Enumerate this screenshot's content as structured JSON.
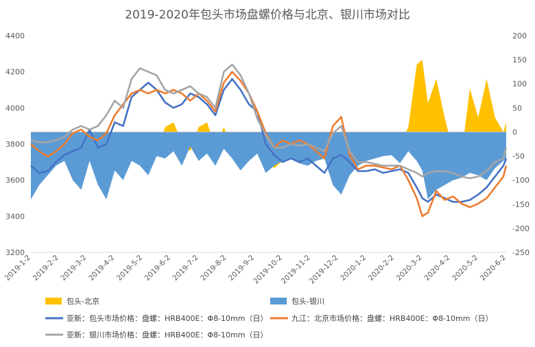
{
  "chart_data": {
    "type": "line",
    "title": "2019-2020年包头市场盘螺价格与北京、银川市场对比",
    "x_categories": [
      "2019-1-2",
      "2019-2-2",
      "2019-3-2",
      "2019-4-2",
      "2019-5-2",
      "2019-6-2",
      "2019-7-2",
      "2019-8-2",
      "2019-9-2",
      "2019-10-2",
      "2019-11-2",
      "2019-12-2",
      "2020-1-2",
      "2020-2-2",
      "2020-3-2",
      "2020-4-2",
      "2020-5-2",
      "2020-6-2"
    ],
    "y_left": {
      "min": 3200,
      "max": 4400,
      "ticks": [
        "3200",
        "3400",
        "3600",
        "3800",
        "4000",
        "4200",
        "4400"
      ]
    },
    "y_right": {
      "min": -250,
      "max": 200,
      "ticks": [
        "-250",
        "-200",
        "-150",
        "-100",
        "-50",
        "0",
        "50",
        "100",
        "150",
        "200"
      ]
    },
    "grid": false,
    "legend_position": "bottom",
    "series": [
      {
        "name": "包头-北京",
        "kind": "area",
        "axis": "right",
        "color": "#FFC000",
        "x": [
          0,
          0.3,
          0.6,
          0.9,
          1.2,
          1.5,
          1.8,
          2.1,
          2.4,
          2.7,
          3.0,
          3.3,
          3.6,
          3.9,
          4.2,
          4.5,
          4.8,
          5.1,
          5.4,
          5.7,
          6.0,
          6.3,
          6.6,
          6.9,
          7.2,
          7.5,
          7.8,
          8.1,
          8.4,
          8.7,
          9.0,
          9.3,
          9.6,
          9.9,
          10.2,
          10.5,
          10.8,
          11.1,
          11.4,
          11.7,
          12.0,
          12.3,
          12.6,
          12.9,
          13.2,
          13.5,
          13.8,
          14.0,
          14.2,
          14.5,
          14.8,
          15.1,
          15.4,
          15.7,
          16.0,
          16.3,
          16.6,
          16.9,
          17.0
        ],
        "values": [
          -20,
          -45,
          -40,
          -60,
          -15,
          -30,
          -10,
          -50,
          -20,
          -60,
          -30,
          -40,
          -50,
          -30,
          -20,
          -40,
          10,
          20,
          -20,
          -40,
          10,
          20,
          -30,
          10,
          -30,
          -50,
          -25,
          -10,
          -60,
          -75,
          -60,
          -50,
          -50,
          -60,
          -35,
          -55,
          -100,
          -130,
          -60,
          -55,
          -40,
          -35,
          -30,
          -28,
          -25,
          10,
          140,
          150,
          60,
          110,
          30,
          -40,
          -50,
          90,
          30,
          110,
          30,
          0,
          20
        ]
      },
      {
        "name": "包头-银川",
        "kind": "area",
        "axis": "right",
        "color": "#5B9BD5",
        "x": [
          0,
          0.3,
          0.6,
          0.9,
          1.2,
          1.5,
          1.8,
          2.1,
          2.4,
          2.7,
          3.0,
          3.3,
          3.6,
          3.9,
          4.2,
          4.5,
          4.8,
          5.1,
          5.4,
          5.7,
          6.0,
          6.3,
          6.6,
          6.9,
          7.2,
          7.5,
          7.8,
          8.1,
          8.4,
          8.7,
          9.0,
          9.3,
          9.6,
          9.9,
          10.2,
          10.5,
          10.8,
          11.1,
          11.4,
          11.7,
          12.0,
          12.3,
          12.6,
          12.9,
          13.2,
          13.5,
          13.8,
          14.0,
          14.2,
          14.5,
          14.8,
          15.1,
          15.4,
          15.7,
          16.0,
          16.3,
          16.6,
          16.9,
          17.0
        ],
        "values": [
          -140,
          -110,
          -90,
          -70,
          -60,
          -100,
          -120,
          -60,
          -110,
          -140,
          -80,
          -100,
          -60,
          -70,
          -90,
          -50,
          -55,
          -40,
          -70,
          -30,
          -60,
          -45,
          -70,
          -35,
          -55,
          -80,
          -60,
          -45,
          -85,
          -70,
          -60,
          -55,
          -65,
          -70,
          -60,
          -55,
          -110,
          -130,
          -90,
          -70,
          -60,
          -55,
          -50,
          -48,
          -65,
          -40,
          -60,
          -80,
          -140,
          -120,
          -110,
          -100,
          -95,
          -85,
          -90,
          -100,
          -75,
          -60,
          -55
        ]
      },
      {
        "name": "亚新：包头市场价格：盘螺：HRB400E：Φ8-10mm（日）",
        "kind": "line",
        "axis": "left",
        "color": "#4472C4",
        "x": [
          0,
          0.3,
          0.6,
          0.9,
          1.2,
          1.5,
          1.8,
          2.1,
          2.4,
          2.7,
          3.0,
          3.3,
          3.6,
          3.9,
          4.2,
          4.5,
          4.8,
          5.1,
          5.4,
          5.7,
          6.0,
          6.3,
          6.6,
          6.9,
          7.2,
          7.5,
          7.8,
          8.1,
          8.4,
          8.7,
          9.0,
          9.3,
          9.6,
          9.9,
          10.2,
          10.5,
          10.8,
          11.1,
          11.4,
          11.7,
          12.0,
          12.3,
          12.6,
          12.9,
          13.2,
          13.5,
          13.8,
          14.0,
          14.2,
          14.5,
          14.8,
          15.1,
          15.4,
          15.7,
          16.0,
          16.3,
          16.6,
          16.9,
          17.0
        ],
        "values": [
          3680,
          3640,
          3650,
          3700,
          3740,
          3760,
          3780,
          3880,
          3780,
          3800,
          3920,
          3900,
          4060,
          4100,
          4140,
          4100,
          4030,
          4000,
          4020,
          4080,
          4060,
          4020,
          3960,
          4100,
          4160,
          4100,
          4020,
          3980,
          3800,
          3740,
          3700,
          3720,
          3700,
          3720,
          3680,
          3640,
          3720,
          3740,
          3700,
          3650,
          3650,
          3660,
          3640,
          3650,
          3660,
          3640,
          3560,
          3500,
          3480,
          3520,
          3500,
          3480,
          3480,
          3490,
          3520,
          3560,
          3620,
          3680,
          3720
        ]
      },
      {
        "name": "九江：北京市场价格：盘螺：HRB400E：Φ8-10mm（日）",
        "kind": "line",
        "axis": "left",
        "color": "#ED7D31",
        "x": [
          0,
          0.3,
          0.6,
          0.9,
          1.2,
          1.5,
          1.8,
          2.1,
          2.4,
          2.7,
          3.0,
          3.3,
          3.6,
          3.9,
          4.2,
          4.5,
          4.8,
          5.1,
          5.4,
          5.7,
          6.0,
          6.3,
          6.6,
          6.9,
          7.2,
          7.5,
          7.8,
          8.1,
          8.4,
          8.7,
          9.0,
          9.3,
          9.6,
          9.9,
          10.2,
          10.5,
          10.8,
          11.1,
          11.4,
          11.7,
          12.0,
          12.3,
          12.6,
          12.9,
          13.2,
          13.5,
          13.8,
          14.0,
          14.2,
          14.5,
          14.8,
          15.1,
          15.4,
          15.7,
          16.0,
          16.3,
          16.6,
          16.9,
          17.0
        ],
        "values": [
          3800,
          3760,
          3730,
          3760,
          3800,
          3860,
          3880,
          3840,
          3820,
          3860,
          3960,
          4020,
          4080,
          4100,
          4080,
          4100,
          4080,
          4100,
          4080,
          4040,
          4080,
          4040,
          3980,
          4140,
          4200,
          4150,
          4080,
          3980,
          3860,
          3780,
          3820,
          3800,
          3820,
          3800,
          3760,
          3720,
          3900,
          3950,
          3740,
          3660,
          3680,
          3680,
          3670,
          3660,
          3680,
          3600,
          3500,
          3400,
          3420,
          3540,
          3490,
          3510,
          3470,
          3450,
          3470,
          3500,
          3560,
          3620,
          3680
        ]
      },
      {
        "name": "亚新：银川市场价格：盘螺：HRB400E：Φ8-10mm（日）",
        "kind": "line",
        "axis": "left",
        "color": "#A5A5A5",
        "x": [
          0,
          0.3,
          0.6,
          0.9,
          1.2,
          1.5,
          1.8,
          2.1,
          2.4,
          2.7,
          3.0,
          3.3,
          3.6,
          3.9,
          4.2,
          4.5,
          4.8,
          5.1,
          5.4,
          5.7,
          6.0,
          6.3,
          6.6,
          6.9,
          7.2,
          7.5,
          7.8,
          8.1,
          8.4,
          8.7,
          9.0,
          9.3,
          9.6,
          9.9,
          10.2,
          10.5,
          10.8,
          11.1,
          11.4,
          11.7,
          12.0,
          12.3,
          12.6,
          12.9,
          13.2,
          13.5,
          13.8,
          14.0,
          14.2,
          14.5,
          14.8,
          15.1,
          15.4,
          15.7,
          16.0,
          16.3,
          16.6,
          16.9,
          17.0
        ],
        "values": [
          3820,
          3810,
          3810,
          3820,
          3840,
          3880,
          3900,
          3880,
          3900,
          3960,
          4040,
          4000,
          4160,
          4220,
          4200,
          4180,
          4100,
          4080,
          4100,
          4120,
          4080,
          4060,
          4000,
          4200,
          4240,
          4180,
          4080,
          3940,
          3850,
          3780,
          3780,
          3800,
          3790,
          3800,
          3780,
          3760,
          3860,
          3900,
          3760,
          3700,
          3700,
          3690,
          3680,
          3680,
          3680,
          3660,
          3640,
          3620,
          3640,
          3650,
          3650,
          3640,
          3620,
          3610,
          3620,
          3650,
          3700,
          3720,
          3780
        ]
      }
    ]
  }
}
